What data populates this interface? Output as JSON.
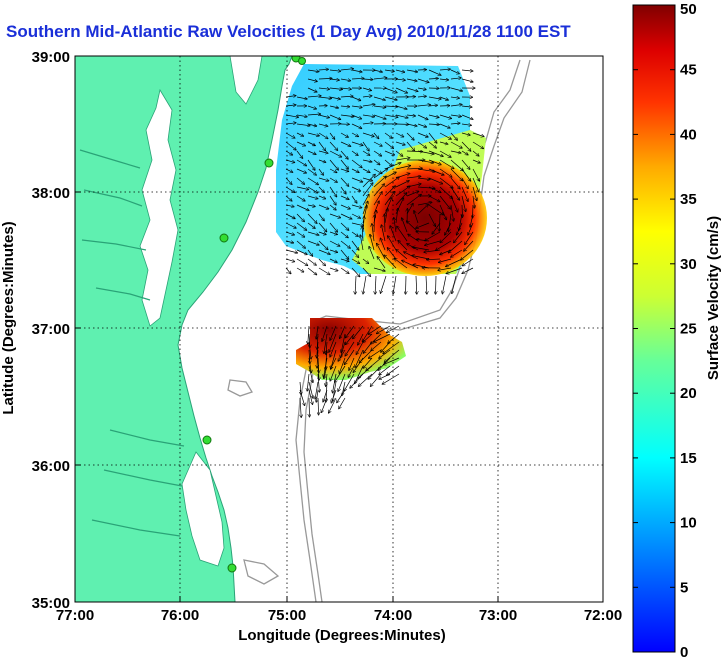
{
  "title": "Southern Mid-Atlantic Raw Velocities (1 Day Avg) 2010/11/28 1100 EST",
  "xlabel": "Longitude (Degrees:Minutes)",
  "ylabel": "Latitude (Degrees:Minutes)",
  "colorbar_label": "Surface Velocity (cm/s)",
  "x_ticks": [
    "77:00",
    "76:00",
    "75:00",
    "74:00",
    "73:00",
    "72:00"
  ],
  "y_ticks": [
    "39:00",
    "38:00",
    "37:00",
    "36:00",
    "35:00"
  ],
  "colorbar_ticks": [
    "50",
    "45",
    "40",
    "35",
    "30",
    "25",
    "20",
    "15",
    "10",
    "5",
    "0"
  ],
  "colors": {
    "land": "#5ff0b0",
    "station": "#33dd33",
    "bathymetry": "#999999",
    "title": "#1a2fd8"
  },
  "chart_data": {
    "type": "heatmap",
    "title": "Southern Mid-Atlantic Raw Velocities (1 Day Avg) 2010/11/28 1100 EST",
    "xlabel": "Longitude (Degrees:Minutes)",
    "ylabel": "Latitude (Degrees:Minutes)",
    "xlim": [
      -77,
      -72
    ],
    "ylim": [
      35,
      39
    ],
    "colorbar": {
      "label": "Surface Velocity (cm/s)",
      "range": [
        0,
        50
      ],
      "colormap": "jet"
    },
    "grid": true
  }
}
